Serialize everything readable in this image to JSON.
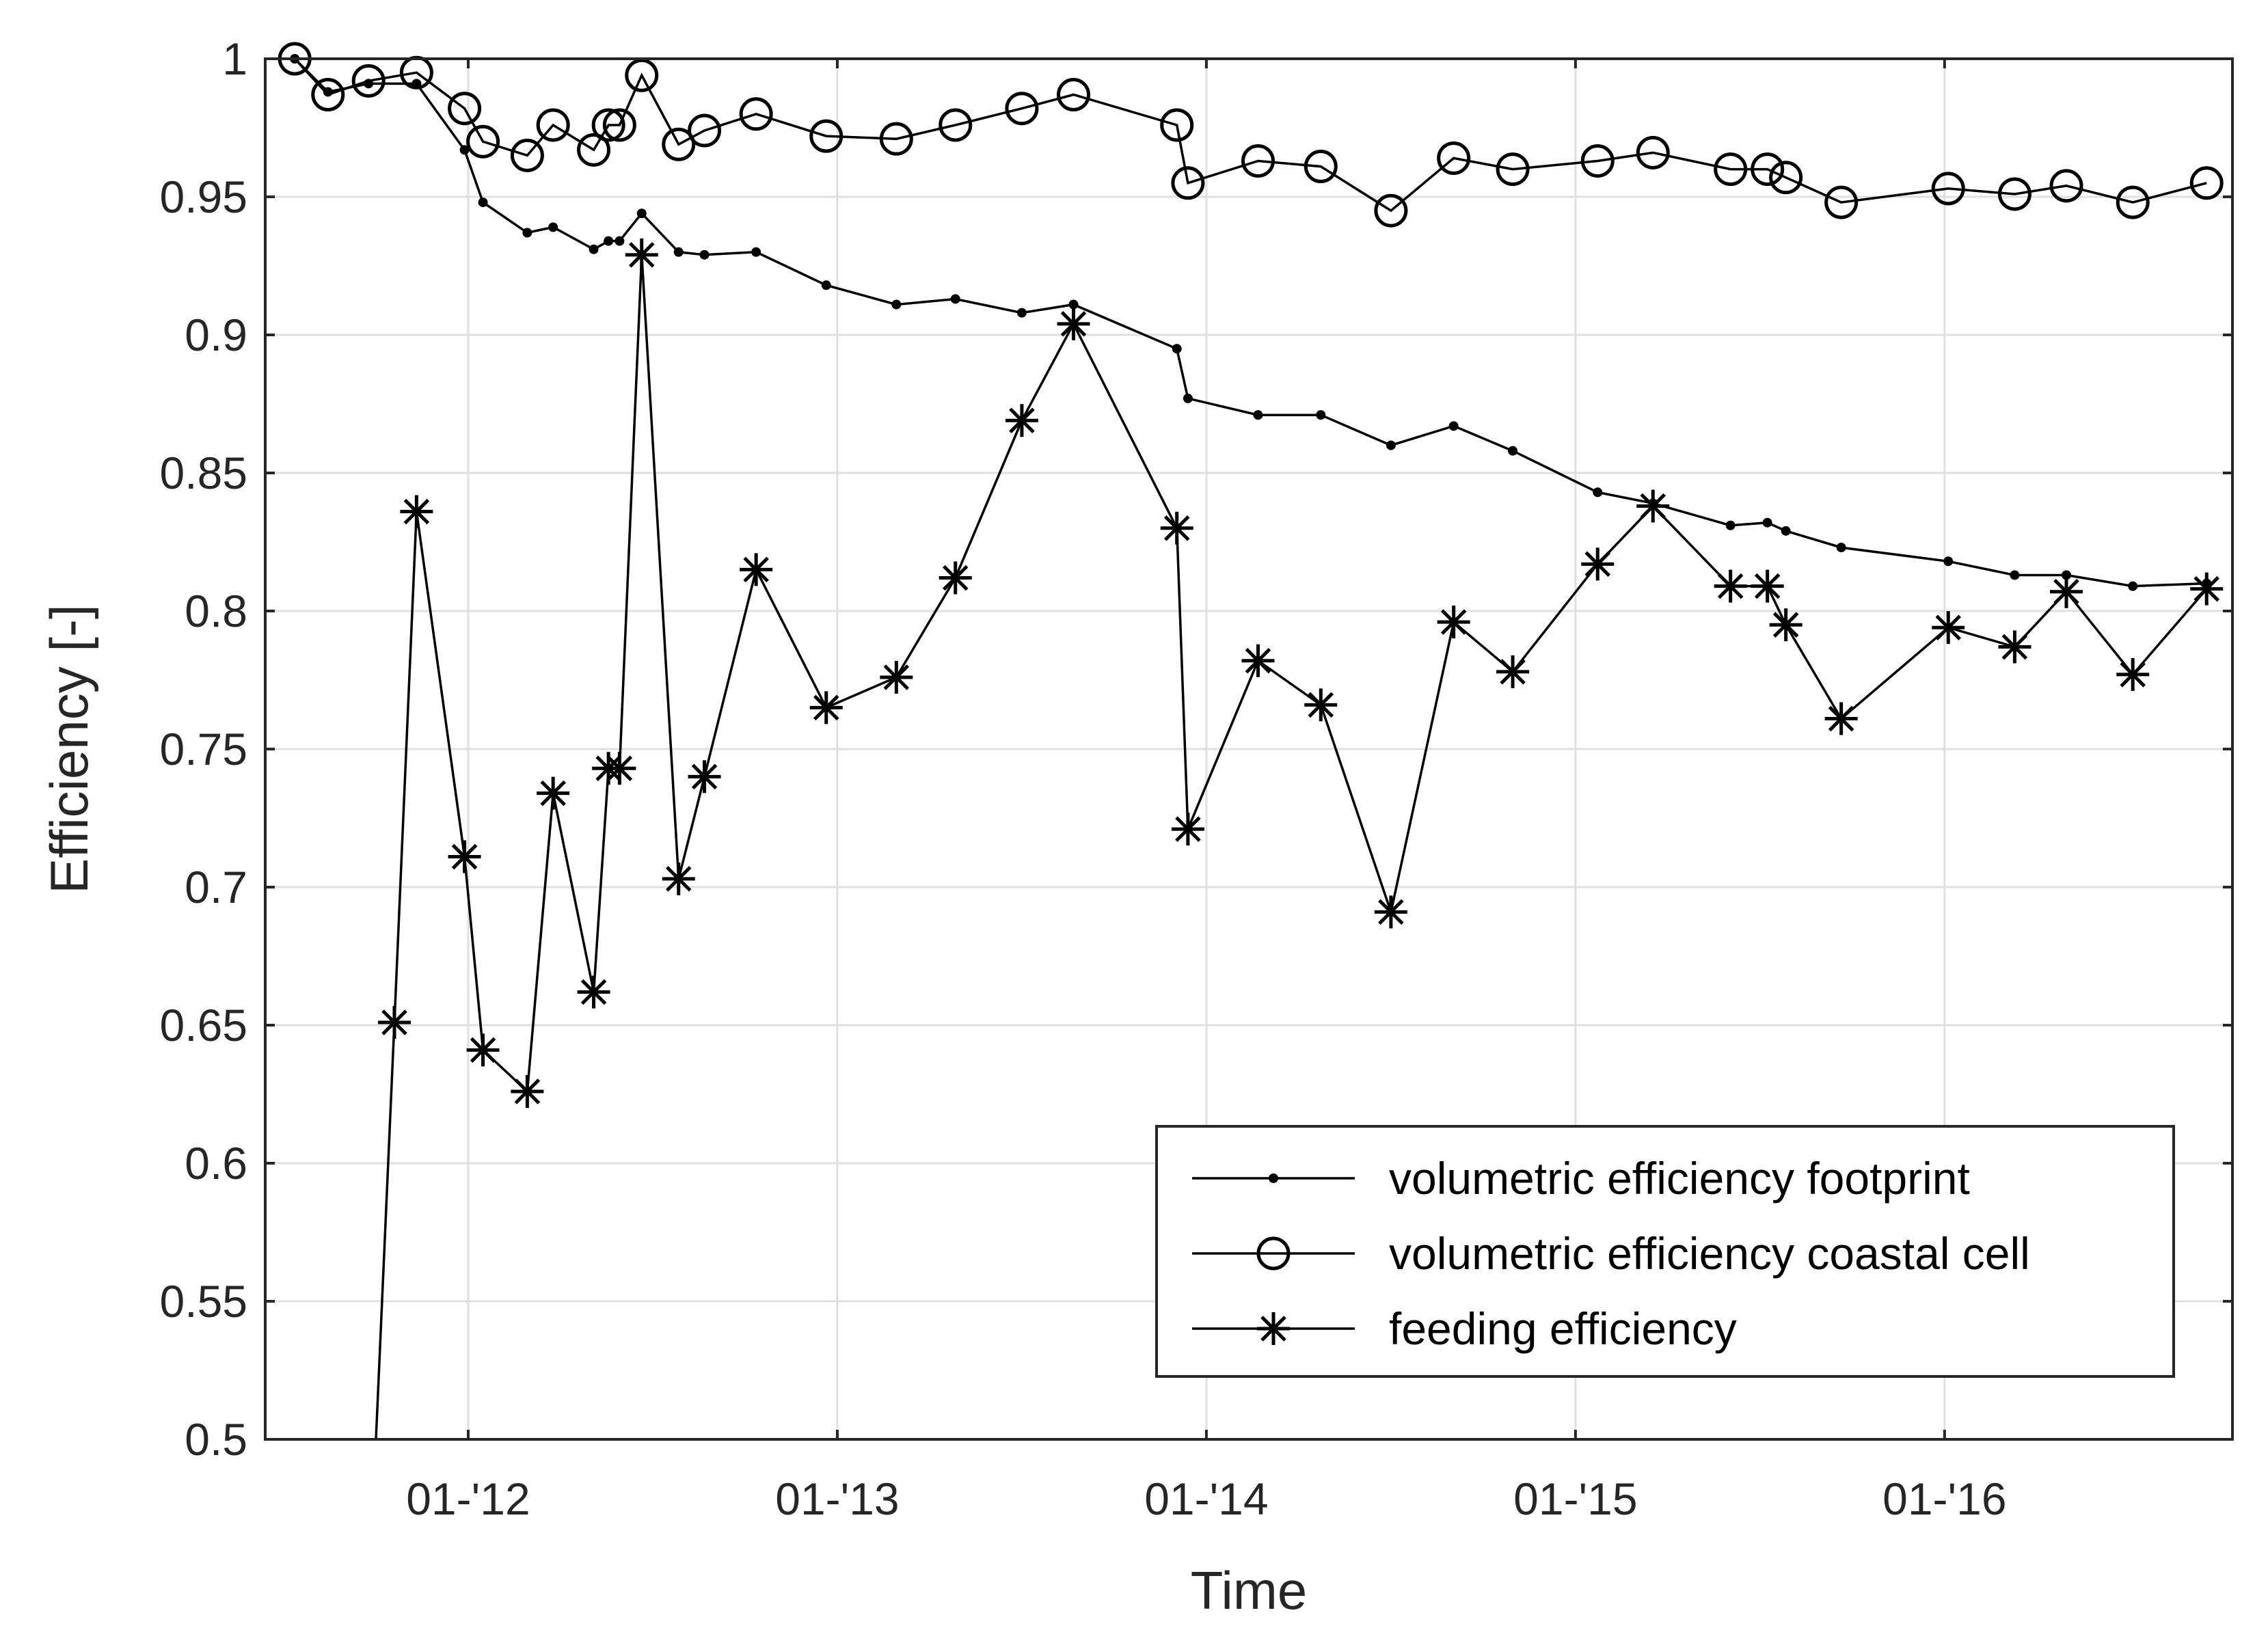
{
  "chart_data": {
    "type": "line",
    "title": "",
    "xlabel": "Time",
    "ylabel": "Efficiency [-]",
    "xlim": [
      2011.45,
      2016.78
    ],
    "ylim": [
      0.5,
      1.0
    ],
    "grid": true,
    "legend_position": "bottom-right",
    "x_ticks": [
      {
        "value": 2012.0,
        "label": "01-'12"
      },
      {
        "value": 2013.0,
        "label": "01-'13"
      },
      {
        "value": 2014.0,
        "label": "01-'14"
      },
      {
        "value": 2015.0,
        "label": "01-'15"
      },
      {
        "value": 2016.0,
        "label": "01-'16"
      }
    ],
    "y_ticks": [
      {
        "value": 0.5,
        "label": "0.5"
      },
      {
        "value": 0.55,
        "label": "0.55"
      },
      {
        "value": 0.6,
        "label": "0.6"
      },
      {
        "value": 0.65,
        "label": "0.65"
      },
      {
        "value": 0.7,
        "label": "0.7"
      },
      {
        "value": 0.75,
        "label": "0.75"
      },
      {
        "value": 0.8,
        "label": "0.8"
      },
      {
        "value": 0.85,
        "label": "0.85"
      },
      {
        "value": 0.9,
        "label": "0.9"
      },
      {
        "value": 0.95,
        "label": "0.95"
      },
      {
        "value": 1.0,
        "label": "1"
      }
    ],
    "series": [
      {
        "name": "volumetric efficiency footprint",
        "marker": "dot",
        "x": [
          2011.53,
          2011.62,
          2011.73,
          2011.86,
          2011.99,
          2012.04,
          2012.16,
          2012.23,
          2012.34,
          2012.38,
          2012.41,
          2012.47,
          2012.57,
          2012.64,
          2012.78,
          2012.97,
          2013.16,
          2013.32,
          2013.5,
          2013.64,
          2013.92,
          2013.95,
          2014.14,
          2014.31,
          2014.5,
          2014.67,
          2014.83,
          2015.06,
          2015.21,
          2015.42,
          2015.52,
          2015.57,
          2015.72,
          2016.01,
          2016.19,
          2016.33,
          2016.51,
          2016.71
        ],
        "y": [
          1.0,
          0.988,
          0.991,
          0.991,
          0.967,
          0.948,
          0.937,
          0.939,
          0.931,
          0.934,
          0.934,
          0.944,
          0.93,
          0.929,
          0.93,
          0.918,
          0.911,
          0.913,
          0.908,
          0.911,
          0.895,
          0.877,
          0.871,
          0.871,
          0.86,
          0.867,
          0.858,
          0.843,
          0.839,
          0.831,
          0.832,
          0.829,
          0.823,
          0.818,
          0.813,
          0.813,
          0.809,
          0.81
        ]
      },
      {
        "name": "volumetric efficiency coastal cell",
        "marker": "circle",
        "x": [
          2011.53,
          2011.62,
          2011.73,
          2011.86,
          2011.99,
          2012.04,
          2012.16,
          2012.23,
          2012.34,
          2012.38,
          2012.41,
          2012.47,
          2012.57,
          2012.64,
          2012.78,
          2012.97,
          2013.16,
          2013.32,
          2013.5,
          2013.64,
          2013.92,
          2013.95,
          2014.14,
          2014.31,
          2014.5,
          2014.67,
          2014.83,
          2015.06,
          2015.21,
          2015.42,
          2015.52,
          2015.57,
          2015.72,
          2016.01,
          2016.19,
          2016.33,
          2016.51,
          2016.71
        ],
        "y": [
          1.0,
          0.987,
          0.992,
          0.995,
          0.982,
          0.97,
          0.965,
          0.976,
          0.967,
          0.976,
          0.976,
          0.994,
          0.969,
          0.974,
          0.98,
          0.972,
          0.971,
          0.976,
          0.982,
          0.987,
          0.976,
          0.955,
          0.963,
          0.961,
          0.945,
          0.964,
          0.96,
          0.963,
          0.966,
          0.96,
          0.96,
          0.957,
          0.948,
          0.953,
          0.951,
          0.954,
          0.948,
          0.955
        ]
      },
      {
        "name": "feeding efficiency",
        "marker": "asterisk",
        "x": [
          2011.75,
          2011.8,
          2011.86,
          2011.99,
          2012.04,
          2012.16,
          2012.23,
          2012.34,
          2012.38,
          2012.41,
          2012.47,
          2012.57,
          2012.64,
          2012.78,
          2012.97,
          2013.16,
          2013.32,
          2013.5,
          2013.64,
          2013.92,
          2013.95,
          2014.14,
          2014.31,
          2014.5,
          2014.67,
          2014.83,
          2015.06,
          2015.21,
          2015.42,
          2015.52,
          2015.57,
          2015.72,
          2016.01,
          2016.19,
          2016.33,
          2016.51,
          2016.71
        ],
        "y": [
          0.5,
          0.651,
          0.836,
          0.711,
          0.641,
          0.626,
          0.734,
          0.662,
          0.743,
          0.743,
          0.929,
          0.703,
          0.74,
          0.815,
          0.765,
          0.776,
          0.812,
          0.869,
          0.904,
          0.83,
          0.721,
          0.782,
          0.766,
          0.691,
          0.796,
          0.778,
          0.817,
          0.838,
          0.809,
          0.809,
          0.795,
          0.761,
          0.794,
          0.787,
          0.807,
          0.777,
          0.808
        ]
      }
    ]
  }
}
